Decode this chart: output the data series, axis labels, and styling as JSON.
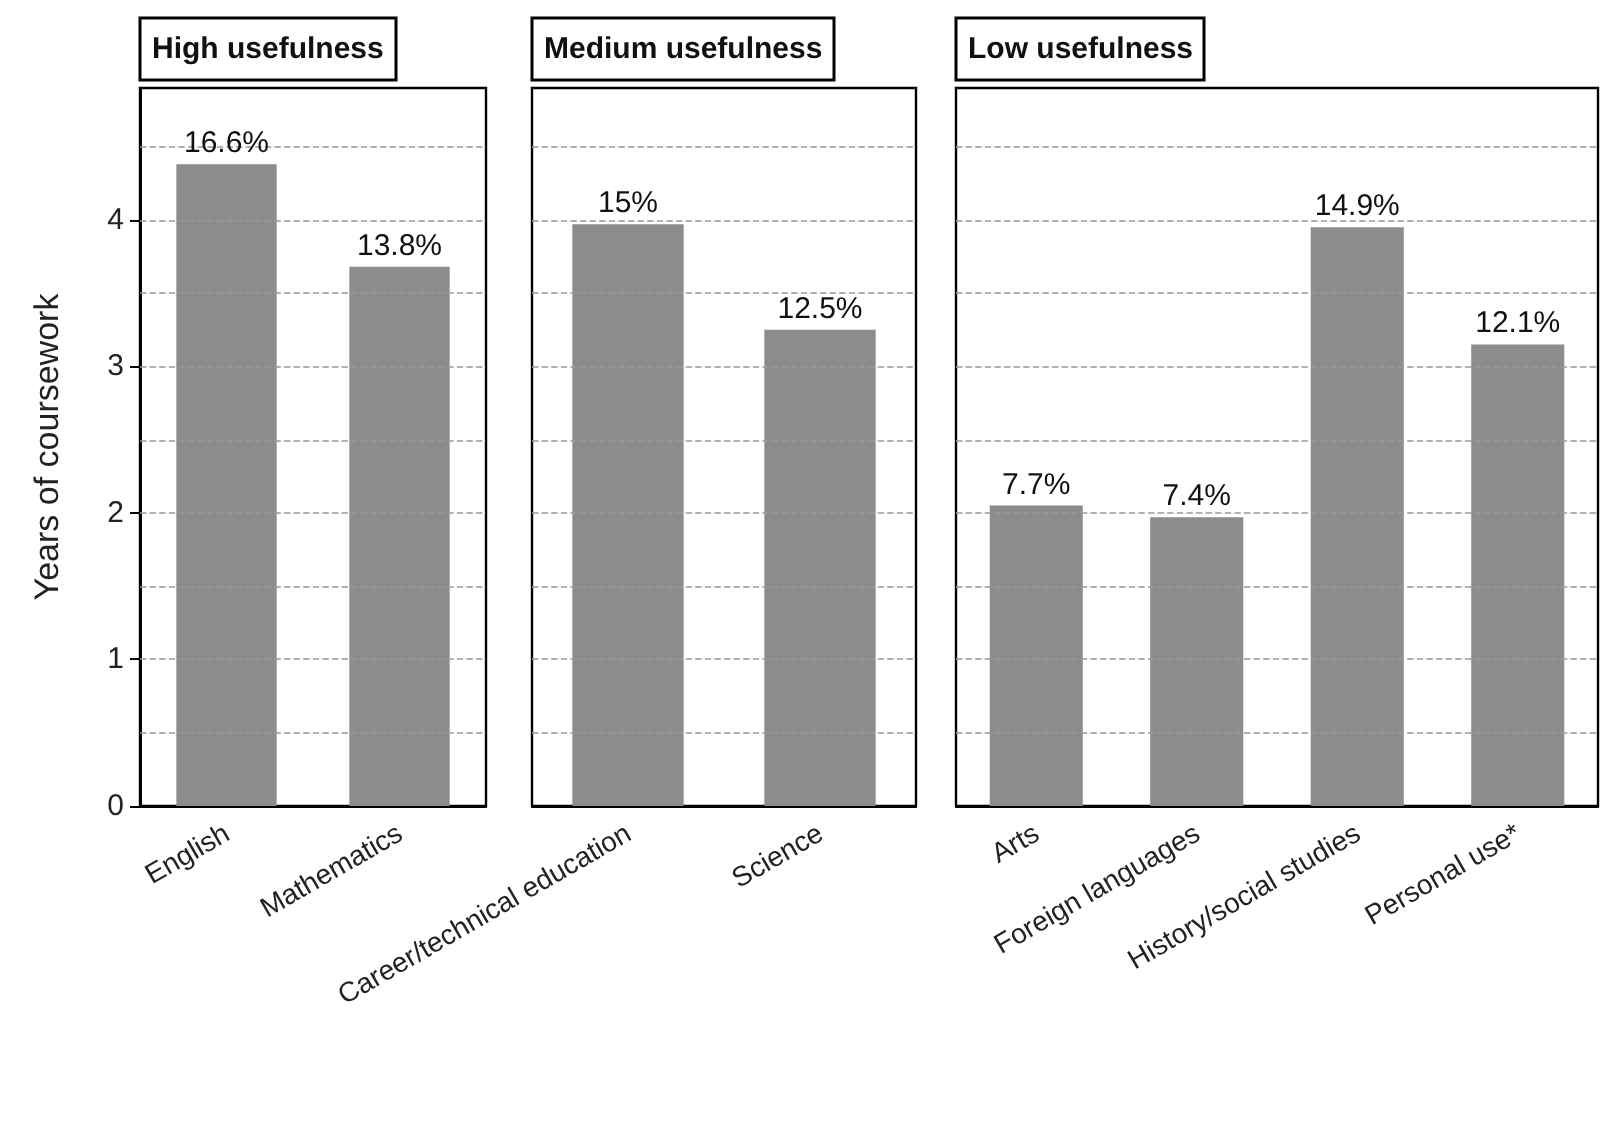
{
  "chart_data": [
    {
      "type": "bar",
      "title": "High usefulness",
      "ylabel": "Years of coursework",
      "categories": [
        "English",
        "Mathematics"
      ],
      "values": [
        4.38,
        3.68
      ],
      "color": "#8c8c8c",
      "ylim": [
        0,
        4.9
      ],
      "yticks": [
        0,
        {
          "value": 0.5,
          "label": null
        },
        1,
        {
          "value": 1.5,
          "label": null
        },
        2,
        {
          "value": 2.5,
          "label": null
        },
        3,
        {
          "value": 3.5,
          "label": null
        },
        4,
        {
          "value": 4.5,
          "label": null
        }
      ],
      "grid": "y",
      "annotations": [
        {
          "text": "16.6%",
          "x": "English",
          "y": 4.38
        },
        {
          "text": "13.8%",
          "x": "Mathematics",
          "y": 3.68
        }
      ]
    },
    {
      "type": "bar",
      "title": "Medium usefulness",
      "categories": [
        "Career/technical education",
        "Science"
      ],
      "values": [
        3.97,
        3.25
      ],
      "color": "#8c8c8c",
      "ylim": [
        0,
        4.9
      ],
      "yticks": [
        0,
        {
          "value": 0.5,
          "label": null
        },
        1,
        {
          "value": 1.5,
          "label": null
        },
        2,
        {
          "value": 2.5,
          "label": null
        },
        3,
        {
          "value": 3.5,
          "label": null
        },
        4,
        {
          "value": 4.5,
          "label": null
        }
      ],
      "grid": "y",
      "tick_labels": "x",
      "annotations": [
        {
          "text": "15%",
          "x": "Career/technical education",
          "y": 3.97
        },
        {
          "text": "12.5%",
          "x": "Science",
          "y": 3.25
        }
      ]
    },
    {
      "type": "bar",
      "title": "Low usefulness",
      "categories": [
        "Arts",
        "Foreign languages",
        "History/social studies",
        "Personal use*"
      ],
      "values": [
        2.05,
        1.97,
        3.95,
        3.15
      ],
      "color": "#8c8c8c",
      "ylim": [
        0,
        4.9
      ],
      "yticks": [
        0,
        {
          "value": 0.5,
          "label": null
        },
        1,
        {
          "value": 1.5,
          "label": null
        },
        2,
        {
          "value": 2.5,
          "label": null
        },
        3,
        {
          "value": 3.5,
          "label": null
        },
        4,
        {
          "value": 4.5,
          "label": null
        }
      ],
      "grid": "y",
      "tick_labels": "x",
      "annotations": [
        {
          "text": "7.7%",
          "x": "Arts",
          "y": 2.05
        },
        {
          "text": "7.4%",
          "x": "Foreign languages",
          "y": 1.97
        },
        {
          "text": "14.9%",
          "x": "History/social studies",
          "y": 3.95
        },
        {
          "text": "12.1%",
          "x": "Personal use*",
          "y": 3.15
        }
      ]
    }
  ]
}
